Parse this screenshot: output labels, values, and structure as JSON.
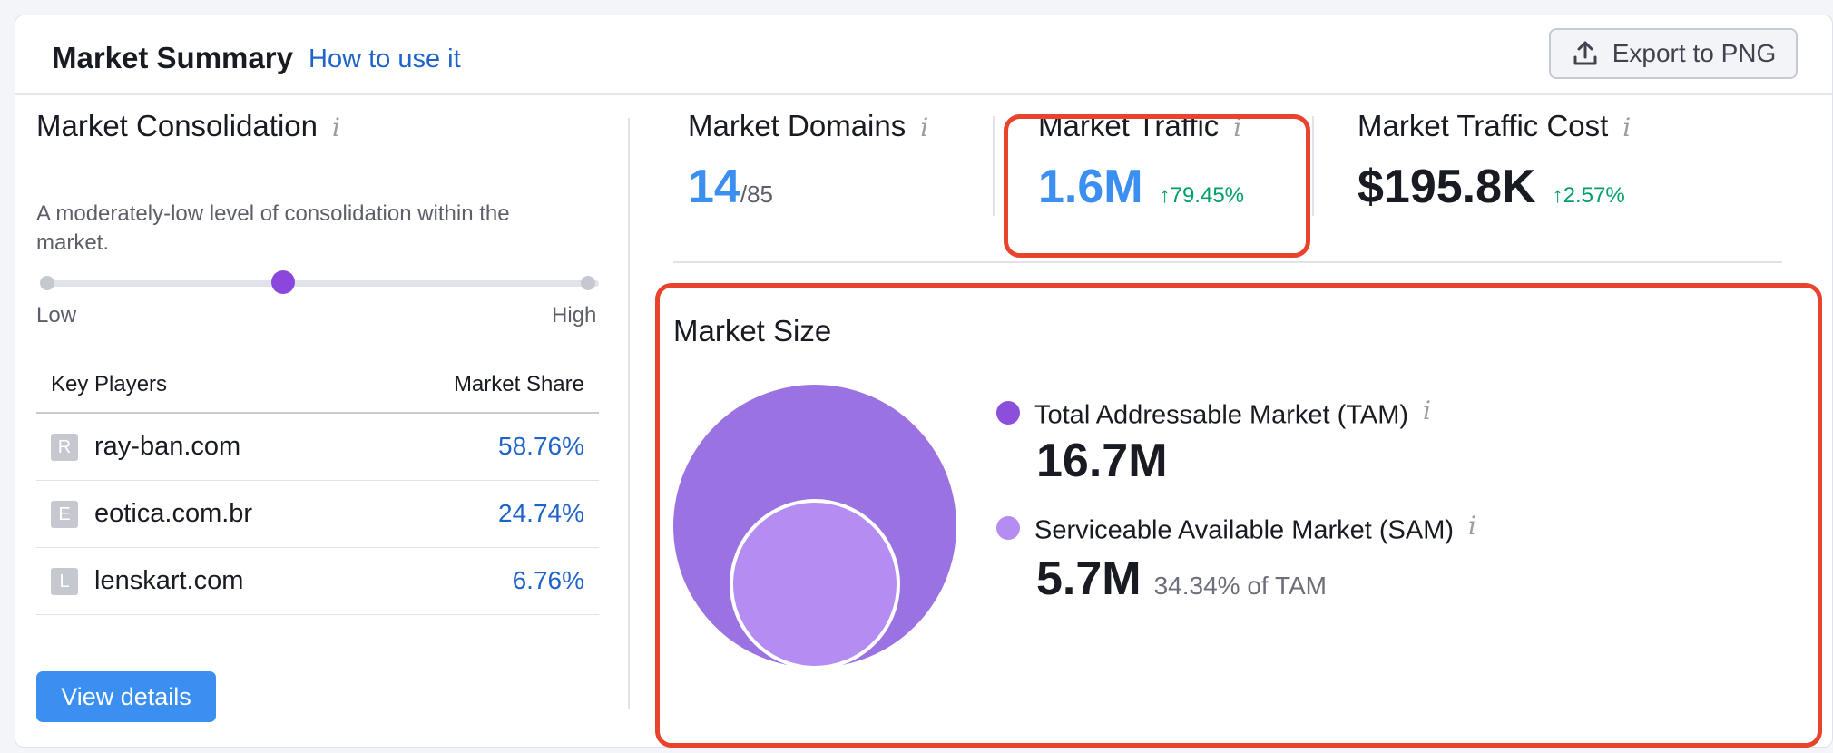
{
  "header": {
    "title": "Market Summary",
    "how_to": "How to use it",
    "export_label": "Export to PNG"
  },
  "consolidation": {
    "title": "Market Consolidation",
    "description": "A moderately-low level of consolidation within the market.",
    "level": 0.4,
    "low_label": "Low",
    "high_label": "High"
  },
  "players": {
    "col_player": "Key Players",
    "col_share": "Market Share",
    "rows": [
      {
        "letter": "R",
        "domain": "ray-ban.com",
        "share": "58.76%"
      },
      {
        "letter": "E",
        "domain": "eotica.com.br",
        "share": "24.74%"
      },
      {
        "letter": "L",
        "domain": "lenskart.com",
        "share": "6.76%"
      }
    ],
    "view_details": "View details"
  },
  "metrics": {
    "domains": {
      "label": "Market Domains",
      "value": "14",
      "total": "/85"
    },
    "traffic": {
      "label": "Market Traffic",
      "value": "1.6M",
      "delta": "↑79.45%"
    },
    "traffic_cost": {
      "label": "Market Traffic Cost",
      "value": "$195.8K",
      "delta": "↑2.57%"
    }
  },
  "market_size": {
    "title": "Market Size",
    "tam": {
      "label": "Total Addressable Market (TAM)",
      "value": "16.7M",
      "color": "#9b72e2"
    },
    "sam": {
      "label": "Serviceable Available Market (SAM)",
      "value": "5.7M",
      "pct_of_tam": "34.34% of TAM",
      "color": "#b48cf2"
    }
  },
  "icons": {
    "info": "i",
    "export": "upload-icon"
  },
  "colors": {
    "accent_blue": "#3b8ff0",
    "link_blue": "#1f64c8",
    "positive_green": "#009f6b",
    "highlight_red": "#e8432d",
    "slider_thumb": "#8b47dc"
  }
}
